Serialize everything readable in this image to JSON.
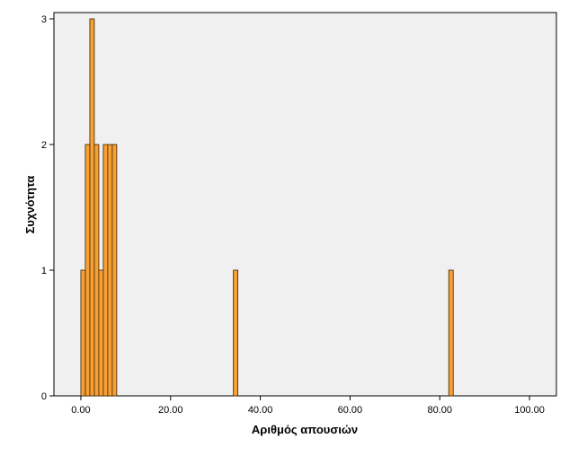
{
  "chart_data": {
    "type": "bar",
    "title": "",
    "xlabel": "Αριθμός απουσιών",
    "ylabel": "Συχνότητα",
    "xlim": [
      -6,
      106
    ],
    "ylim": [
      0,
      3.05
    ],
    "xticks": [
      0,
      20,
      40,
      60,
      80,
      100
    ],
    "xtick_labels": [
      "0.00",
      "20.00",
      "40.00",
      "60.00",
      "80.00",
      "100.00"
    ],
    "yticks": [
      0,
      1,
      2,
      3
    ],
    "ytick_labels": [
      "0",
      "1",
      "2",
      "3"
    ],
    "bin_width": 1,
    "bars": [
      {
        "x": 0,
        "value": 1
      },
      {
        "x": 1,
        "value": 2
      },
      {
        "x": 2,
        "value": 3
      },
      {
        "x": 3,
        "value": 2
      },
      {
        "x": 4,
        "value": 1
      },
      {
        "x": 5,
        "value": 2
      },
      {
        "x": 6,
        "value": 2
      },
      {
        "x": 7,
        "value": 2
      },
      {
        "x": 34,
        "value": 1
      },
      {
        "x": 82,
        "value": 1
      }
    ],
    "grid": false,
    "legend": "none",
    "colors": {
      "bar_fill": "#f7a035",
      "bar_stroke": "#3a2000",
      "plot_background": "#f0f0f0",
      "axis": "#000000"
    }
  }
}
